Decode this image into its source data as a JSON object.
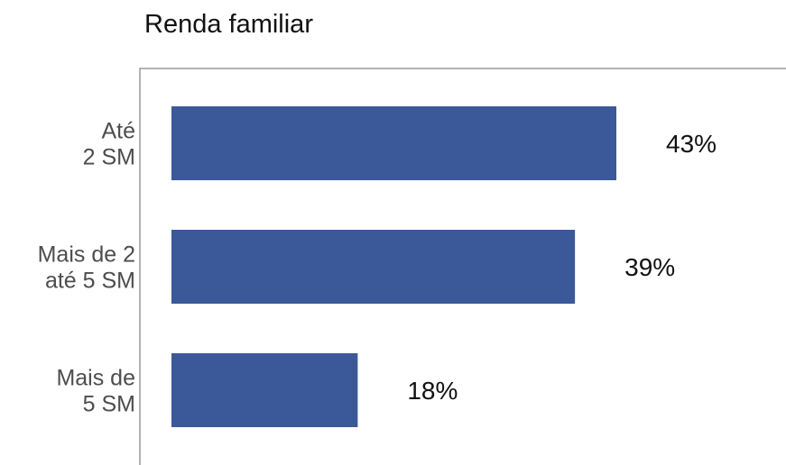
{
  "chart_data": {
    "type": "bar",
    "orientation": "horizontal",
    "title": "Renda familiar",
    "categories": [
      [
        "Até",
        "2 SM"
      ],
      [
        "Mais de 2",
        "até 5 SM"
      ],
      [
        "Mais de",
        "5 SM"
      ]
    ],
    "values": [
      43,
      39,
      18
    ],
    "value_labels": [
      "43%",
      "39%",
      "18%"
    ],
    "xlabel": "",
    "ylabel": "",
    "xlim": [
      0,
      50
    ],
    "grid": false,
    "legend": "none",
    "bar_color": "#3b5998"
  }
}
